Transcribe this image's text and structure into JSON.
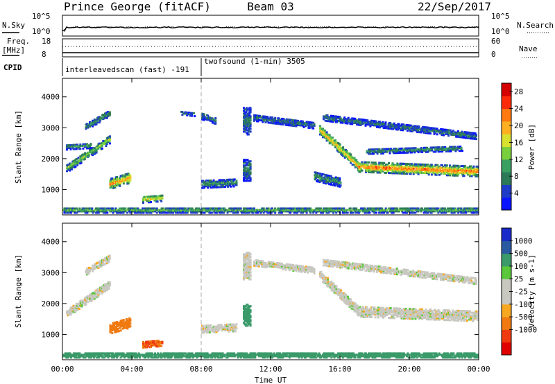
{
  "header": {
    "radar": "Prince George (fitACF)",
    "beam": "Beam 03",
    "date": "22/Sep/2017"
  },
  "top_panel": {
    "nsky_label": "N.Sky",
    "nsearch_label": "N.Search",
    "noise_ticks": [
      "10^5",
      "10^0"
    ],
    "freq_label_1": "Freq.",
    "freq_label_2": "[MHz]",
    "freq_ticks": [
      "18",
      "8"
    ],
    "nave_label": "Nave",
    "nave_ticks": [
      "60",
      "0"
    ],
    "cpid_label": "CPID",
    "cpid_1": "interleavedscan (fast) -191",
    "cpid_2": "twofsound (1-min) 3505"
  },
  "legend_colors": {
    "power": [
      "#0a14ff",
      "#1e3cc8",
      "#2d7a58",
      "#3aa062",
      "#7ad03c",
      "#d8e030",
      "#ffb020",
      "#ff7a10",
      "#ff2a0a",
      "#d40000"
    ],
    "velocity": [
      "#e00000",
      "#f03a10",
      "#f07a10",
      "#f8a820",
      "#c8c8c0",
      "#c8c8c0",
      "#5ac83a",
      "#3a9a6a",
      "#2a5aa0",
      "#1a2ac8"
    ]
  },
  "chart_data": [
    {
      "type": "heatmap",
      "title": "",
      "xlabel": "",
      "ylabel": "Slant Range [km]",
      "xlim": [
        0,
        24
      ],
      "ylim": [
        180,
        4600
      ],
      "x_ticks": [
        "00:00",
        "04:00",
        "08:00",
        "12:00",
        "16:00",
        "20:00",
        "00:00"
      ],
      "y_ticks": [
        "1000",
        "2000",
        "3000",
        "4000"
      ],
      "colorbar": {
        "label": "Power [dB]",
        "ticks": [
          "4",
          "8",
          "12",
          "16",
          "20",
          "24",
          "28"
        ],
        "range": [
          0,
          30
        ]
      },
      "regions": [
        {
          "t0": 0.2,
          "t1": 2.7,
          "r_start": 1650,
          "r_end": 2600,
          "width": 260,
          "value": 14
        },
        {
          "t0": 0.2,
          "t1": 1.6,
          "r_start": 2350,
          "r_end": 2400,
          "width": 180,
          "value": 10
        },
        {
          "t0": 1.3,
          "t1": 2.7,
          "r_start": 3000,
          "r_end": 3450,
          "width": 220,
          "value": 10
        },
        {
          "t0": 2.7,
          "t1": 3.9,
          "r_start": 1150,
          "r_end": 1350,
          "width": 320,
          "value": 22
        },
        {
          "t0": 4.6,
          "t1": 5.7,
          "r_start": 650,
          "r_end": 700,
          "width": 220,
          "value": 18
        },
        {
          "t0": 6.8,
          "t1": 7.6,
          "r_start": 3450,
          "r_end": 3400,
          "width": 120,
          "value": 8
        },
        {
          "t0": 8.0,
          "t1": 10.0,
          "r_start": 1150,
          "r_end": 1200,
          "width": 260,
          "value": 10
        },
        {
          "t0": 8.0,
          "t1": 8.8,
          "r_start": 3350,
          "r_end": 3200,
          "width": 220,
          "value": 8
        },
        {
          "t0": 10.4,
          "t1": 10.8,
          "r_start": 3200,
          "r_end": 3200,
          "width": 900,
          "value": 8
        },
        {
          "t0": 10.4,
          "t1": 10.8,
          "r_start": 1600,
          "r_end": 1600,
          "width": 700,
          "value": 8
        },
        {
          "t0": 11.0,
          "t1": 14.5,
          "r_start": 3300,
          "r_end": 3050,
          "width": 220,
          "value": 8
        },
        {
          "t0": 14.5,
          "t1": 16.0,
          "r_start": 1400,
          "r_end": 1200,
          "width": 300,
          "value": 10
        },
        {
          "t0": 14.8,
          "t1": 17.0,
          "r_start": 2900,
          "r_end": 1750,
          "width": 300,
          "value": 20
        },
        {
          "t0": 17.0,
          "t1": 24.0,
          "r_start": 1700,
          "r_end": 1550,
          "width": 320,
          "value": 24
        },
        {
          "t0": 15.0,
          "t1": 23.8,
          "r_start": 3300,
          "r_end": 2700,
          "width": 200,
          "value": 8
        },
        {
          "t0": 17.5,
          "t1": 23.0,
          "r_start": 2200,
          "r_end": 2300,
          "width": 160,
          "value": 10
        },
        {
          "t0": 0.0,
          "t1": 24.0,
          "r_start": 300,
          "r_end": 300,
          "width": 170,
          "value": 12
        }
      ]
    },
    {
      "type": "heatmap",
      "title": "",
      "xlabel": "Time UT",
      "ylabel": "Slant Range [km]",
      "xlim": [
        0,
        24
      ],
      "ylim": [
        180,
        4600
      ],
      "x_ticks": [
        "00:00",
        "04:00",
        "08:00",
        "12:00",
        "16:00",
        "20:00",
        "00:00"
      ],
      "y_ticks": [
        "1000",
        "2000",
        "3000",
        "4000"
      ],
      "colorbar": {
        "label": "Velocity [m s-1]",
        "ticks": [
          "1000",
          "500",
          "100",
          "25",
          "-25",
          "-100",
          "-500",
          "-1000"
        ]
      },
      "regions": [
        {
          "t0": 0.2,
          "t1": 2.7,
          "r_start": 1650,
          "r_end": 2600,
          "width": 260,
          "value": 0
        },
        {
          "t0": 1.3,
          "t1": 2.7,
          "r_start": 3000,
          "r_end": 3450,
          "width": 220,
          "value": 0
        },
        {
          "t0": 2.7,
          "t1": 3.9,
          "r_start": 1150,
          "r_end": 1350,
          "width": 320,
          "value": -200
        },
        {
          "t0": 4.6,
          "t1": 5.7,
          "r_start": 650,
          "r_end": 700,
          "width": 220,
          "value": -300
        },
        {
          "t0": 8.0,
          "t1": 10.0,
          "r_start": 1150,
          "r_end": 1200,
          "width": 260,
          "value": 0
        },
        {
          "t0": 10.4,
          "t1": 10.8,
          "r_start": 3200,
          "r_end": 3200,
          "width": 900,
          "value": 0
        },
        {
          "t0": 10.4,
          "t1": 10.8,
          "r_start": 1600,
          "r_end": 1600,
          "width": 700,
          "value": 150
        },
        {
          "t0": 11.0,
          "t1": 14.5,
          "r_start": 3300,
          "r_end": 3050,
          "width": 220,
          "value": 0
        },
        {
          "t0": 14.8,
          "t1": 17.0,
          "r_start": 2900,
          "r_end": 1750,
          "width": 300,
          "value": 0
        },
        {
          "t0": 17.0,
          "t1": 24.0,
          "r_start": 1700,
          "r_end": 1550,
          "width": 320,
          "value": 0
        },
        {
          "t0": 15.0,
          "t1": 23.8,
          "r_start": 3300,
          "r_end": 2700,
          "width": 200,
          "value": 0
        },
        {
          "t0": 0.0,
          "t1": 24.0,
          "r_start": 300,
          "r_end": 300,
          "width": 170,
          "value": 150
        }
      ]
    }
  ]
}
